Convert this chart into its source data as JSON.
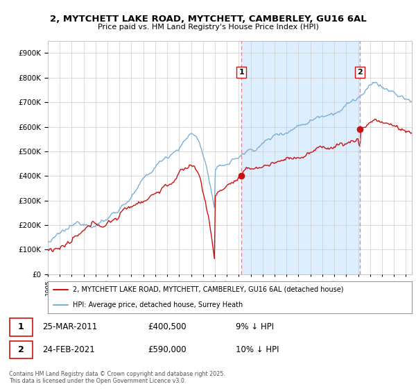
{
  "title_line1": "2, MYTCHETT LAKE ROAD, MYTCHETT, CAMBERLEY, GU16 6AL",
  "title_line2": "Price paid vs. HM Land Registry's House Price Index (HPI)",
  "background_color": "#ffffff",
  "plot_bg_color": "#ffffff",
  "grid_color": "#cccccc",
  "hpi_color": "#7bafd4",
  "hpi_fill_color": "#ddeeff",
  "price_color": "#cc1111",
  "dashed_line_color": "#e88080",
  "sale1_date": "25-MAR-2011",
  "sale1_price": 400500,
  "sale1_label": "9% ↓ HPI",
  "sale2_date": "24-FEB-2021",
  "sale2_price": 590000,
  "sale2_label": "10% ↓ HPI",
  "legend_label1": "2, MYTCHETT LAKE ROAD, MYTCHETT, CAMBERLEY, GU16 6AL (detached house)",
  "legend_label2": "HPI: Average price, detached house, Surrey Heath",
  "footer_text": "Contains HM Land Registry data © Crown copyright and database right 2025.\nThis data is licensed under the Open Government Licence v3.0.",
  "ylim_min": 0,
  "ylim_max": 950000,
  "ytick_step": 100000,
  "sale1_x": 2011.23,
  "sale2_x": 2021.15,
  "xmin": 1995,
  "xmax": 2025.5
}
